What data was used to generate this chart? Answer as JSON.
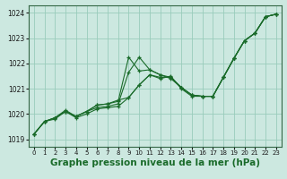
{
  "background_color": "#cce8e0",
  "grid_color": "#99ccbb",
  "line_color": "#1a6b2a",
  "xlabel": "Graphe pression niveau de la mer (hPa)",
  "xlabel_fontsize": 7.5,
  "ylim": [
    1018.7,
    1024.3
  ],
  "xlim": [
    -0.5,
    23.5
  ],
  "yticks": [
    1019,
    1020,
    1021,
    1022,
    1023,
    1024
  ],
  "xticks": [
    0,
    1,
    2,
    3,
    4,
    5,
    6,
    7,
    8,
    9,
    10,
    11,
    12,
    13,
    14,
    15,
    16,
    17,
    18,
    19,
    20,
    21,
    22,
    23
  ],
  "series": [
    [
      1019.2,
      1019.7,
      1019.8,
      1020.1,
      1019.85,
      1020.0,
      1020.2,
      1020.25,
      1020.3,
      1020.65,
      1021.15,
      1021.55,
      1021.4,
      1021.5,
      1021.0,
      1020.7,
      1020.7,
      1020.7,
      1021.45,
      1022.2,
      1022.9,
      1023.2,
      1023.85,
      1023.95
    ],
    [
      1019.2,
      1019.7,
      1019.85,
      1020.1,
      1019.9,
      1020.1,
      1020.25,
      1020.3,
      1020.4,
      1021.65,
      1022.25,
      1021.75,
      1021.55,
      1021.4,
      1021.05,
      1020.75,
      1020.7,
      1020.7,
      1021.45,
      1022.2,
      1022.9,
      1023.2,
      1023.85,
      1023.95
    ],
    [
      1019.2,
      1019.7,
      1019.85,
      1020.1,
      1019.9,
      1020.1,
      1020.35,
      1020.4,
      1020.5,
      1022.25,
      1021.7,
      1021.75,
      1021.55,
      1021.45,
      1021.05,
      1020.75,
      1020.7,
      1020.7,
      1021.45,
      1022.2,
      1022.9,
      1023.2,
      1023.85,
      1023.95
    ],
    [
      1019.2,
      1019.7,
      1019.85,
      1020.15,
      1019.9,
      1020.1,
      1020.35,
      1020.4,
      1020.55,
      1020.65,
      1021.15,
      1021.55,
      1021.45,
      1021.45,
      1021.05,
      1020.75,
      1020.7,
      1020.7,
      1021.45,
      1022.2,
      1022.9,
      1023.2,
      1023.85,
      1023.95
    ]
  ]
}
